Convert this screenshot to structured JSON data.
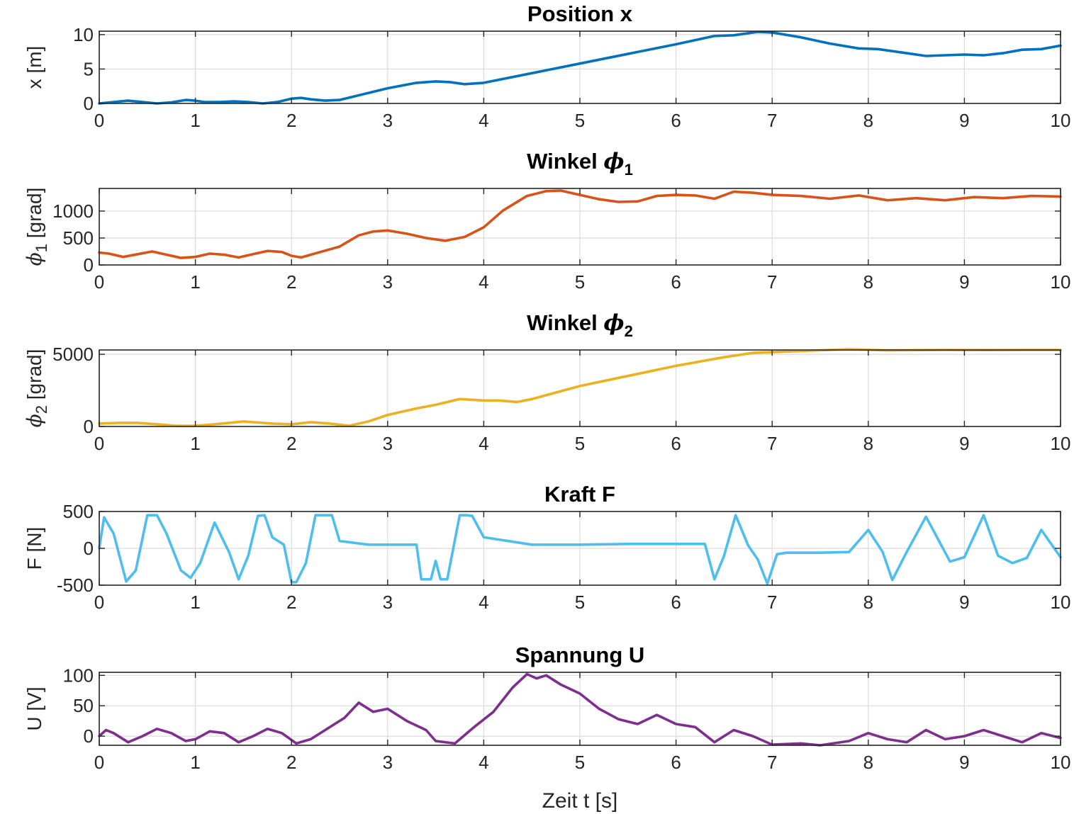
{
  "figure": {
    "xlabel": "Zeit t [s]"
  },
  "chart_data": [
    {
      "type": "line",
      "title": "Position x",
      "title_sym": "",
      "title_sub": "",
      "ylabel": "x [m]",
      "ylabel_sym": "",
      "ylabel_sub": "",
      "xlim": [
        0,
        10
      ],
      "ylim": [
        0,
        10.5
      ],
      "xticks": [
        0,
        1,
        2,
        3,
        4,
        5,
        6,
        7,
        8,
        9,
        10
      ],
      "xtick_labels": [
        "0",
        "1",
        "2",
        "3",
        "4",
        "5",
        "6",
        "7",
        "8",
        "9",
        "10"
      ],
      "yticks": [
        0,
        5,
        10
      ],
      "ytick_labels": [
        "0",
        "5",
        "10"
      ],
      "grid": true,
      "color": "#0072BD",
      "series": [
        {
          "x": [
            0,
            0.15,
            0.3,
            0.45,
            0.6,
            0.75,
            0.9,
            1.0,
            1.1,
            1.25,
            1.4,
            1.55,
            1.7,
            1.85,
            2.0,
            2.1,
            2.2,
            2.35,
            2.5,
            3.0,
            3.3,
            3.5,
            3.65,
            3.8,
            4.0,
            5.0,
            6.0,
            6.4,
            6.6,
            6.85,
            7.0,
            7.3,
            7.6,
            7.9,
            8.1,
            8.3,
            8.6,
            8.8,
            9.0,
            9.2,
            9.4,
            9.6,
            9.8,
            10.0
          ],
          "y": [
            0,
            0.2,
            0.4,
            0.2,
            0,
            0.15,
            0.5,
            0.4,
            0.2,
            0.2,
            0.3,
            0.2,
            0,
            0.2,
            0.7,
            0.8,
            0.6,
            0.4,
            0.5,
            2.2,
            3.0,
            3.2,
            3.1,
            2.8,
            3.0,
            5.8,
            8.6,
            9.8,
            9.9,
            10.4,
            10.3,
            9.6,
            8.7,
            8.0,
            7.9,
            7.5,
            6.9,
            7.0,
            7.1,
            7.0,
            7.3,
            7.8,
            7.9,
            8.4
          ]
        }
      ]
    },
    {
      "type": "line",
      "title": "Winkel ",
      "title_sym": "ϕ",
      "title_sub": "1",
      "ylabel": " [grad]",
      "ylabel_sym": "ϕ",
      "ylabel_sub": "1",
      "xlim": [
        0,
        10
      ],
      "ylim": [
        0,
        1420
      ],
      "xticks": [
        0,
        1,
        2,
        3,
        4,
        5,
        6,
        7,
        8,
        9,
        10
      ],
      "xtick_labels": [
        "0",
        "1",
        "2",
        "3",
        "4",
        "5",
        "6",
        "7",
        "8",
        "9",
        "10"
      ],
      "yticks": [
        0,
        500,
        1000
      ],
      "ytick_labels": [
        "0",
        "500",
        "1000"
      ],
      "grid": true,
      "color": "#D95319",
      "series": [
        {
          "x": [
            0,
            0.1,
            0.25,
            0.4,
            0.55,
            0.7,
            0.85,
            1.0,
            1.15,
            1.3,
            1.45,
            1.6,
            1.75,
            1.9,
            2.0,
            2.1,
            2.3,
            2.5,
            2.7,
            2.85,
            3.0,
            3.2,
            3.4,
            3.6,
            3.8,
            4.0,
            4.2,
            4.45,
            4.65,
            4.8,
            5.0,
            5.2,
            5.4,
            5.6,
            5.8,
            6.0,
            6.2,
            6.4,
            6.6,
            6.8,
            7.0,
            7.3,
            7.6,
            7.9,
            8.2,
            8.5,
            8.8,
            9.1,
            9.4,
            9.7,
            10.0
          ],
          "y": [
            230,
            210,
            150,
            200,
            250,
            190,
            130,
            150,
            210,
            190,
            140,
            200,
            260,
            240,
            170,
            140,
            240,
            340,
            550,
            620,
            640,
            580,
            500,
            450,
            520,
            700,
            1010,
            1280,
            1370,
            1380,
            1300,
            1220,
            1170,
            1180,
            1280,
            1300,
            1290,
            1230,
            1360,
            1340,
            1300,
            1280,
            1230,
            1290,
            1200,
            1240,
            1200,
            1260,
            1240,
            1280,
            1270
          ]
        }
      ]
    },
    {
      "type": "line",
      "title": "Winkel ",
      "title_sym": "ϕ",
      "title_sub": "2",
      "ylabel": " [grad]",
      "ylabel_sym": "ϕ",
      "ylabel_sub": "2",
      "xlim": [
        0,
        10
      ],
      "ylim": [
        0,
        5300
      ],
      "xticks": [
        0,
        1,
        2,
        3,
        4,
        5,
        6,
        7,
        8,
        9,
        10
      ],
      "xtick_labels": [
        "0",
        "1",
        "2",
        "3",
        "4",
        "5",
        "6",
        "7",
        "8",
        "9",
        "10"
      ],
      "yticks": [
        0,
        5000
      ],
      "ytick_labels": [
        "0",
        "5000"
      ],
      "grid": true,
      "color": "#EDB120",
      "series": [
        {
          "x": [
            0,
            0.2,
            0.4,
            0.6,
            0.8,
            1.0,
            1.2,
            1.5,
            1.8,
            2.0,
            2.2,
            2.4,
            2.6,
            2.8,
            3.0,
            3.3,
            3.5,
            3.75,
            4.0,
            4.15,
            4.35,
            4.5,
            5.0,
            6.0,
            6.5,
            6.8,
            7.0,
            7.4,
            7.8,
            8.2,
            8.8,
            9.2,
            9.6,
            10.0
          ],
          "y": [
            200,
            250,
            250,
            150,
            50,
            50,
            150,
            350,
            200,
            150,
            300,
            200,
            50,
            350,
            800,
            1250,
            1500,
            1900,
            1800,
            1800,
            1700,
            1900,
            2800,
            4200,
            4800,
            5100,
            5150,
            5250,
            5350,
            5270,
            5300,
            5290,
            5300,
            5300
          ]
        }
      ]
    },
    {
      "type": "line",
      "title": "Kraft F",
      "title_sym": "",
      "title_sub": "",
      "ylabel": "F [N]",
      "ylabel_sym": "",
      "ylabel_sub": "",
      "xlim": [
        0,
        10
      ],
      "ylim": [
        -500,
        500
      ],
      "xticks": [
        0,
        1,
        2,
        3,
        4,
        5,
        6,
        7,
        8,
        9,
        10
      ],
      "xtick_labels": [
        "0",
        "1",
        "2",
        "3",
        "4",
        "5",
        "6",
        "7",
        "8",
        "9",
        "10"
      ],
      "yticks": [
        -500,
        0,
        500
      ],
      "ytick_labels": [
        "-500",
        "0",
        "500"
      ],
      "grid": true,
      "color": "#4DBEEE",
      "series": [
        {
          "x": [
            0,
            0.05,
            0.15,
            0.28,
            0.38,
            0.5,
            0.6,
            0.7,
            0.85,
            0.95,
            1.05,
            1.2,
            1.35,
            1.45,
            1.55,
            1.65,
            1.72,
            1.8,
            1.92,
            2.0,
            2.05,
            2.15,
            2.25,
            2.3,
            2.42,
            2.5,
            2.8,
            3.0,
            3.3,
            3.35,
            3.45,
            3.5,
            3.55,
            3.62,
            3.75,
            3.82,
            3.88,
            4.0,
            4.5,
            5.0,
            5.5,
            6.0,
            6.3,
            6.4,
            6.5,
            6.62,
            6.75,
            6.85,
            6.95,
            7.05,
            7.15,
            7.5,
            7.8,
            8.0,
            8.15,
            8.25,
            8.4,
            8.6,
            8.85,
            9.0,
            9.2,
            9.35,
            9.5,
            9.65,
            9.8,
            10.0
          ],
          "y": [
            0,
            420,
            200,
            -450,
            -300,
            450,
            450,
            200,
            -300,
            -400,
            -200,
            350,
            -50,
            -420,
            -100,
            440,
            450,
            150,
            50,
            -460,
            -460,
            -200,
            450,
            450,
            450,
            100,
            50,
            50,
            50,
            -420,
            -420,
            -170,
            -420,
            -420,
            450,
            450,
            440,
            150,
            50,
            50,
            60,
            60,
            60,
            -420,
            -100,
            450,
            40,
            -150,
            -480,
            -80,
            -60,
            -60,
            -50,
            250,
            -50,
            -430,
            -50,
            430,
            -180,
            -120,
            450,
            -100,
            -200,
            -130,
            250,
            -120
          ]
        }
      ]
    },
    {
      "type": "line",
      "title": "Spannung U",
      "title_sym": "",
      "title_sub": "",
      "ylabel": "U [V]",
      "ylabel_sym": "",
      "ylabel_sub": "",
      "xlim": [
        0,
        10
      ],
      "ylim": [
        -15,
        105
      ],
      "xticks": [
        0,
        1,
        2,
        3,
        4,
        5,
        6,
        7,
        8,
        9,
        10
      ],
      "xtick_labels": [
        "0",
        "1",
        "2",
        "3",
        "4",
        "5",
        "6",
        "7",
        "8",
        "9",
        "10"
      ],
      "yticks": [
        0,
        50,
        100
      ],
      "ytick_labels": [
        "0",
        "50",
        "100"
      ],
      "grid": true,
      "color": "#7E2F8E",
      "series": [
        {
          "x": [
            0,
            0.07,
            0.15,
            0.3,
            0.45,
            0.6,
            0.75,
            0.9,
            1.0,
            1.15,
            1.3,
            1.45,
            1.6,
            1.75,
            1.9,
            2.05,
            2.2,
            2.35,
            2.55,
            2.7,
            2.85,
            3.0,
            3.2,
            3.4,
            3.5,
            3.6,
            3.7,
            3.9,
            4.1,
            4.3,
            4.45,
            4.55,
            4.65,
            4.8,
            5.0,
            5.2,
            5.4,
            5.6,
            5.8,
            6.0,
            6.2,
            6.4,
            6.6,
            6.8,
            7.0,
            7.3,
            7.5,
            7.8,
            8.0,
            8.2,
            8.4,
            8.6,
            8.8,
            9.0,
            9.2,
            9.4,
            9.6,
            9.8,
            10.0
          ],
          "y": [
            0,
            10,
            5,
            -10,
            0,
            12,
            5,
            -8,
            -5,
            8,
            5,
            -10,
            0,
            12,
            5,
            -12,
            -5,
            10,
            30,
            55,
            40,
            45,
            25,
            10,
            -8,
            -10,
            -12,
            15,
            40,
            80,
            102,
            95,
            100,
            85,
            70,
            45,
            28,
            20,
            35,
            20,
            15,
            -10,
            10,
            0,
            -14,
            -12,
            -15,
            -8,
            5,
            -5,
            -10,
            10,
            -5,
            0,
            10,
            0,
            -10,
            5,
            -3
          ]
        }
      ]
    }
  ]
}
